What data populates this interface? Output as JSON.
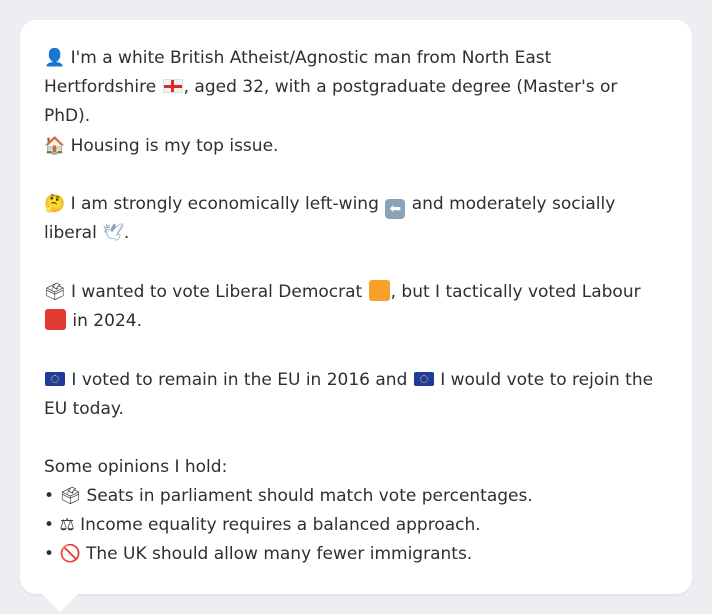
{
  "profile": {
    "intro": {
      "icon": "person-silhouette-icon",
      "text_before_flag": "I'm a white British Atheist/Agnostic man from North East Hertfordshire",
      "flag": "england-flag-icon",
      "text_after_flag": ", aged 32, with a postgraduate degree (Master's or PhD)."
    },
    "housing": {
      "icon": "house-icon",
      "text": "Housing is my top issue."
    },
    "politics": {
      "icon": "thinking-face-icon",
      "text_a": "I am strongly economically left-wing",
      "left_arrow_icon": "left-arrow-icon",
      "text_b": "and moderately socially liberal",
      "dove_icon": "dove-icon",
      "text_c": "."
    },
    "vote": {
      "icon": "ballot-box-icon",
      "text_a": "I wanted to vote Liberal Democrat",
      "libdem_color": "#f7a02a",
      "text_b": ", but I tactically voted Labour",
      "labour_color": "#e03a33",
      "text_c": "in 2024."
    },
    "eu": {
      "icon": "eu-flag-icon",
      "text_a": "I voted to remain in the EU in 2016 and",
      "text_b": "I would vote to rejoin the EU today."
    },
    "opinions_heading": "Some opinions I hold:",
    "opinions": [
      {
        "icon": "ballot-box-icon",
        "text": "Seats in parliament should match vote percentages."
      },
      {
        "icon": "balance-scale-icon",
        "text": "Income equality requires a balanced approach."
      },
      {
        "icon": "prohibited-icon",
        "text": "The UK should allow many fewer immigrants."
      }
    ]
  }
}
